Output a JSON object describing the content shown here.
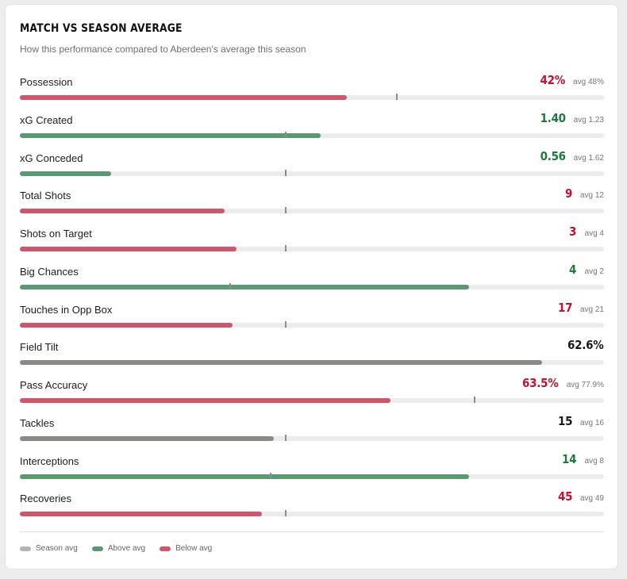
{
  "header": {
    "title": "MATCH VS SEASON AVERAGE",
    "subtitle": "How this performance compared to Aberdeen's average this season"
  },
  "colors": {
    "below": "#d2566b",
    "above": "#5a9a72",
    "neutral": "#8a8a86",
    "season_avg": "#b5b5b5"
  },
  "stats": [
    {
      "label": "Possession",
      "value": "42%",
      "avg": "avg 48%",
      "status": "below",
      "fill_pct": 56,
      "avg_pct": 64.5
    },
    {
      "label": "xG Created",
      "value": "1.40",
      "avg": "avg 1.23",
      "status": "above",
      "fill_pct": 51.5,
      "avg_pct": 45.5
    },
    {
      "label": "xG Conceded",
      "value": "0.56",
      "avg": "avg 1.62",
      "status": "above",
      "fill_pct": 15.6,
      "avg_pct": 45.5
    },
    {
      "label": "Total Shots",
      "value": "9",
      "avg": "avg 12",
      "status": "below",
      "fill_pct": 35,
      "avg_pct": 45.5
    },
    {
      "label": "Shots on Target",
      "value": "3",
      "avg": "avg 4",
      "status": "below",
      "fill_pct": 37.1,
      "avg_pct": 45.5
    },
    {
      "label": "Big Chances",
      "value": "4",
      "avg": "avg 2",
      "status": "above",
      "fill_pct": 76.9,
      "avg_pct": 36
    },
    {
      "label": "Touches in Opp Box",
      "value": "17",
      "avg": "avg 21",
      "status": "below",
      "fill_pct": 36.4,
      "avg_pct": 45.5
    },
    {
      "label": "Field Tilt",
      "value": "62.6%",
      "avg": "",
      "status": "neutral",
      "fill_pct": 89.4,
      "avg_pct": null
    },
    {
      "label": "Pass Accuracy",
      "value": "63.5%",
      "avg": "avg 77.9%",
      "status": "below",
      "fill_pct": 63.5,
      "avg_pct": 77.9
    },
    {
      "label": "Tackles",
      "value": "15",
      "avg": "avg 16",
      "status": "neutral",
      "fill_pct": 43.5,
      "avg_pct": 45.5
    },
    {
      "label": "Interceptions",
      "value": "14",
      "avg": "avg 8",
      "status": "above",
      "fill_pct": 76.9,
      "avg_pct": 43
    },
    {
      "label": "Recoveries",
      "value": "45",
      "avg": "avg 49",
      "status": "below",
      "fill_pct": 41.4,
      "avg_pct": 45.5
    }
  ],
  "legend": [
    {
      "label": "Season avg",
      "color": "#b5b5b5"
    },
    {
      "label": "Above avg",
      "color": "#5a9a72"
    },
    {
      "label": "Below avg",
      "color": "#d2566b"
    }
  ]
}
